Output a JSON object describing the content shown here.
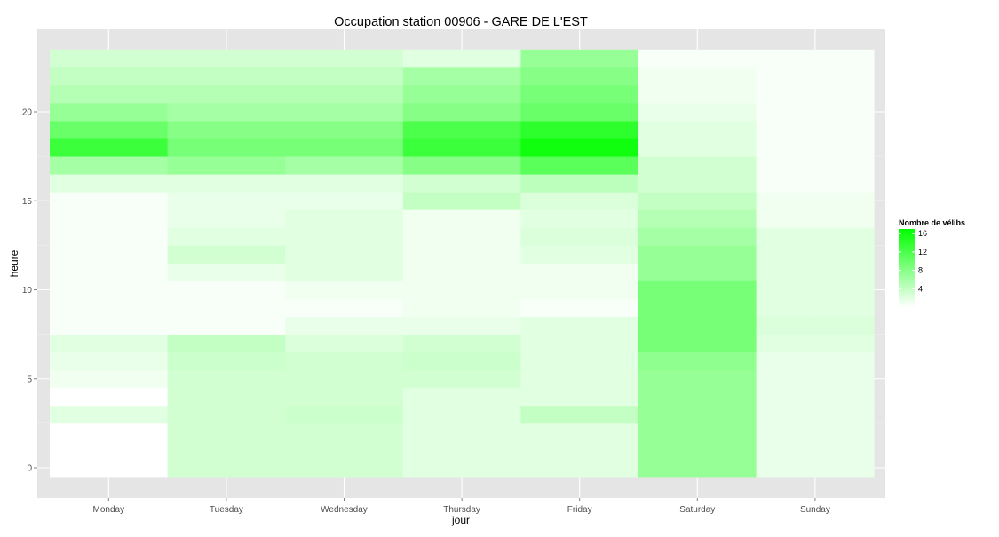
{
  "chart_data": {
    "type": "heatmap",
    "title": "Occupation station 00906 - GARE DE L'EST",
    "xlabel": "jour",
    "ylabel": "heure",
    "x_categories": [
      "Monday",
      "Tuesday",
      "Wednesday",
      "Thursday",
      "Friday",
      "Saturday",
      "Sunday"
    ],
    "y_values": [
      0,
      1,
      2,
      3,
      4,
      5,
      6,
      7,
      8,
      9,
      10,
      11,
      12,
      13,
      14,
      15,
      16,
      17,
      18,
      19,
      20,
      21,
      22,
      23
    ],
    "y_ticks": [
      0,
      5,
      10,
      15,
      20
    ],
    "ylim": [
      -0.5,
      23.5
    ],
    "legend": {
      "title": "Nombre de vélibs",
      "ticks": [
        4,
        8,
        12,
        16
      ],
      "placement": "right",
      "min": 0,
      "max": 17,
      "low_color": "#ffffff",
      "high_color": "#00ff00"
    },
    "grid": true,
    "values": {
      "Monday": [
        0,
        0,
        0,
        2,
        0,
        1,
        1.5,
        2,
        0.5,
        0.5,
        0.5,
        0.5,
        0.5,
        0.5,
        0.5,
        0.5,
        2,
        6,
        13,
        10,
        7,
        5,
        4,
        3
      ],
      "Tuesday": [
        3,
        3,
        3,
        3,
        3,
        3,
        3.5,
        4,
        0.5,
        0.5,
        0.5,
        1.5,
        3,
        2,
        1.5,
        1.5,
        2,
        7,
        9,
        8,
        6,
        5,
        4,
        3
      ],
      "Wednesday": [
        3,
        3,
        3,
        3.5,
        3,
        3,
        3,
        2.5,
        1.5,
        0.5,
        1,
        2,
        2,
        2,
        2,
        1.5,
        2,
        6,
        9,
        8,
        6,
        5,
        4,
        3
      ],
      "Thursday": [
        2,
        2,
        2,
        2,
        2,
        3,
        3.5,
        3,
        1.5,
        1,
        1,
        1,
        1,
        1,
        1,
        4,
        3,
        8,
        13,
        12,
        8,
        7,
        6,
        2
      ],
      "Friday": [
        2,
        2,
        2,
        4,
        2,
        2,
        2,
        2,
        2,
        0.5,
        1,
        1,
        2,
        2.5,
        2,
        2.5,
        4.5,
        11,
        16,
        14,
        10,
        9,
        8,
        7
      ],
      "Saturday": [
        7,
        7,
        7,
        7,
        7,
        7,
        7.5,
        9,
        9,
        9,
        9,
        7,
        7,
        6,
        5,
        4,
        3,
        3,
        2,
        2,
        1.5,
        1,
        1,
        0.5
      ],
      "Sunday": [
        1.5,
        1.5,
        1.5,
        1.5,
        1.5,
        1.5,
        1.5,
        2,
        2.5,
        2,
        2,
        2,
        2,
        2,
        1,
        1,
        0.5,
        0.5,
        0.5,
        0.5,
        0.5,
        0.5,
        0.5,
        0.5
      ]
    }
  }
}
